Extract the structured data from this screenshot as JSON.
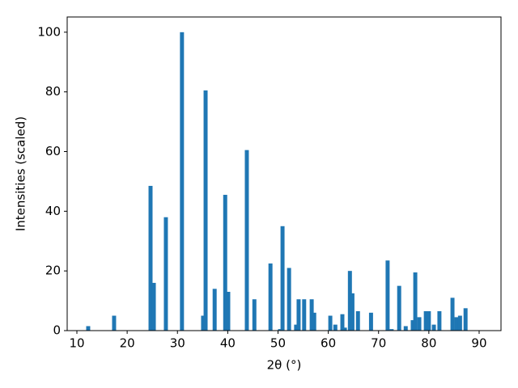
{
  "chart_data": {
    "type": "bar",
    "x": [
      12.25,
      17.4,
      24.65,
      25.3,
      27.7,
      30.9,
      35.1,
      35.6,
      37.4,
      39.5,
      40.1,
      43.8,
      45.3,
      48.5,
      50.4,
      50.9,
      52.2,
      53.6,
      54.1,
      55.2,
      56.7,
      57.2,
      60.4,
      61.4,
      62.8,
      63.3,
      64.3,
      64.8,
      65.9,
      68.5,
      71.8,
      72.6,
      74.1,
      75.4,
      76.8,
      77.3,
      78.1,
      79.4,
      80.0,
      81.0,
      82.1,
      84.7,
      85.5,
      86.2,
      87.3
    ],
    "values": [
      1.5,
      5,
      48.5,
      16,
      38,
      100,
      5,
      80.5,
      14,
      45.5,
      13,
      60.5,
      10.5,
      22.5,
      0.5,
      35,
      21,
      2,
      10.5,
      10.5,
      10.5,
      6,
      5,
      2,
      5.5,
      1,
      20,
      12.5,
      6.5,
      6,
      23.5,
      0.5,
      15,
      1.5,
      3.5,
      19.5,
      4.5,
      6.5,
      6.5,
      2,
      6.5,
      11,
      4.5,
      5,
      7.5
    ],
    "color": "#1f77b4",
    "xlabel": "2θ (°)",
    "ylabel": "Intensities (scaled)",
    "xlim": [
      8.07,
      94.35
    ],
    "ylim": [
      0,
      105.1
    ],
    "xticks": [
      10,
      20,
      30,
      40,
      50,
      60,
      70,
      80,
      90
    ],
    "yticks": [
      0,
      20,
      40,
      60,
      80,
      100
    ]
  }
}
